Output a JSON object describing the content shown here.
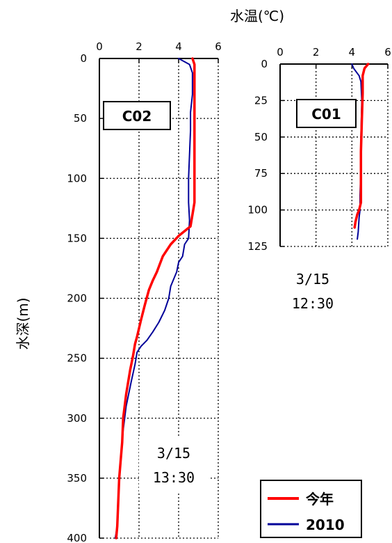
{
  "x_axis_title": "水温(℃)",
  "y_axis_title": "水深(m)",
  "legend": [
    {
      "label": "今年",
      "color": "#ff0000"
    },
    {
      "label": "2010",
      "color": "#000099"
    }
  ],
  "chart_data": [
    {
      "type": "line",
      "station": "C02",
      "timestamp": [
        "3/15",
        "13:30"
      ],
      "xlabel": "",
      "ylabel": "水深(m)",
      "xlim": [
        0,
        6
      ],
      "ylim": [
        400,
        0
      ],
      "x_ticks": [
        "0",
        "2",
        "4",
        "6"
      ],
      "y_ticks": [
        "0",
        "50",
        "100",
        "150",
        "200",
        "250",
        "300",
        "350",
        "400"
      ],
      "x_tick_values": [
        0,
        2,
        4,
        6
      ],
      "y_tick_values": [
        0,
        50,
        100,
        150,
        200,
        250,
        300,
        350,
        400
      ],
      "grid": true,
      "series": [
        {
          "name": "今年",
          "color": "#ff0000",
          "points": [
            [
              4.7,
              0
            ],
            [
              4.8,
              5
            ],
            [
              4.8,
              20
            ],
            [
              4.8,
              60
            ],
            [
              4.8,
              100
            ],
            [
              4.8,
              120
            ],
            [
              4.75,
              125
            ],
            [
              4.6,
              140
            ],
            [
              4.0,
              148
            ],
            [
              3.6,
              155
            ],
            [
              3.2,
              165
            ],
            [
              2.9,
              178
            ],
            [
              2.7,
              185
            ],
            [
              2.5,
              193
            ],
            [
              2.3,
              205
            ],
            [
              2.1,
              218
            ],
            [
              2.0,
              225
            ],
            [
              1.9,
              232
            ],
            [
              1.8,
              238
            ],
            [
              1.7,
              248
            ],
            [
              1.55,
              260
            ],
            [
              1.35,
              280
            ],
            [
              1.2,
              300
            ],
            [
              1.15,
              320
            ],
            [
              1.0,
              350
            ],
            [
              0.95,
              370
            ],
            [
              0.9,
              390
            ],
            [
              0.85,
              400
            ]
          ]
        },
        {
          "name": "2010",
          "color": "#000099",
          "points": [
            [
              4.0,
              0
            ],
            [
              4.55,
              5
            ],
            [
              4.7,
              12
            ],
            [
              4.7,
              30
            ],
            [
              4.6,
              45
            ],
            [
              4.6,
              60
            ],
            [
              4.55,
              80
            ],
            [
              4.5,
              100
            ],
            [
              4.5,
              120
            ],
            [
              4.55,
              135
            ],
            [
              4.5,
              150
            ],
            [
              4.3,
              155
            ],
            [
              4.2,
              165
            ],
            [
              4.0,
              170
            ],
            [
              3.9,
              178
            ],
            [
              3.6,
              190
            ],
            [
              3.5,
              200
            ],
            [
              3.3,
              210
            ],
            [
              3.0,
              220
            ],
            [
              2.7,
              228
            ],
            [
              2.4,
              235
            ],
            [
              2.1,
              240
            ],
            [
              1.9,
              245
            ],
            [
              1.8,
              255
            ],
            [
              1.6,
              270
            ],
            [
              1.35,
              290
            ],
            [
              1.2,
              310
            ],
            [
              1.1,
              330
            ],
            [
              1.0,
              350
            ],
            [
              0.95,
              370
            ],
            [
              0.9,
              390
            ],
            [
              0.8,
              400
            ]
          ]
        }
      ]
    },
    {
      "type": "line",
      "station": "C01",
      "timestamp": [
        "3/15",
        "12:30"
      ],
      "xlabel": "水温(℃)",
      "ylabel": "",
      "xlim": [
        0,
        6
      ],
      "ylim": [
        125,
        0
      ],
      "x_ticks": [
        "0",
        "2",
        "4",
        "6"
      ],
      "y_ticks": [
        "0",
        "25",
        "50",
        "75",
        "100",
        "125"
      ],
      "x_tick_values": [
        0,
        2,
        4,
        6
      ],
      "y_tick_values": [
        0,
        25,
        50,
        75,
        100,
        125
      ],
      "grid": true,
      "series": [
        {
          "name": "今年",
          "color": "#ff0000",
          "points": [
            [
              4.9,
              0
            ],
            [
              4.7,
              3
            ],
            [
              4.6,
              8
            ],
            [
              4.6,
              20
            ],
            [
              4.55,
              40
            ],
            [
              4.5,
              60
            ],
            [
              4.5,
              80
            ],
            [
              4.5,
              95
            ],
            [
              4.4,
              100
            ],
            [
              4.3,
              103
            ],
            [
              4.2,
              108
            ],
            [
              4.15,
              112
            ]
          ]
        },
        {
          "name": "2010",
          "color": "#000099",
          "points": [
            [
              4.0,
              0
            ],
            [
              4.1,
              3
            ],
            [
              4.4,
              8
            ],
            [
              4.5,
              12
            ],
            [
              4.55,
              25
            ],
            [
              4.5,
              50
            ],
            [
              4.5,
              70
            ],
            [
              4.45,
              90
            ],
            [
              4.45,
              100
            ],
            [
              4.4,
              105
            ],
            [
              4.35,
              115
            ],
            [
              4.3,
              120
            ]
          ]
        }
      ]
    }
  ]
}
